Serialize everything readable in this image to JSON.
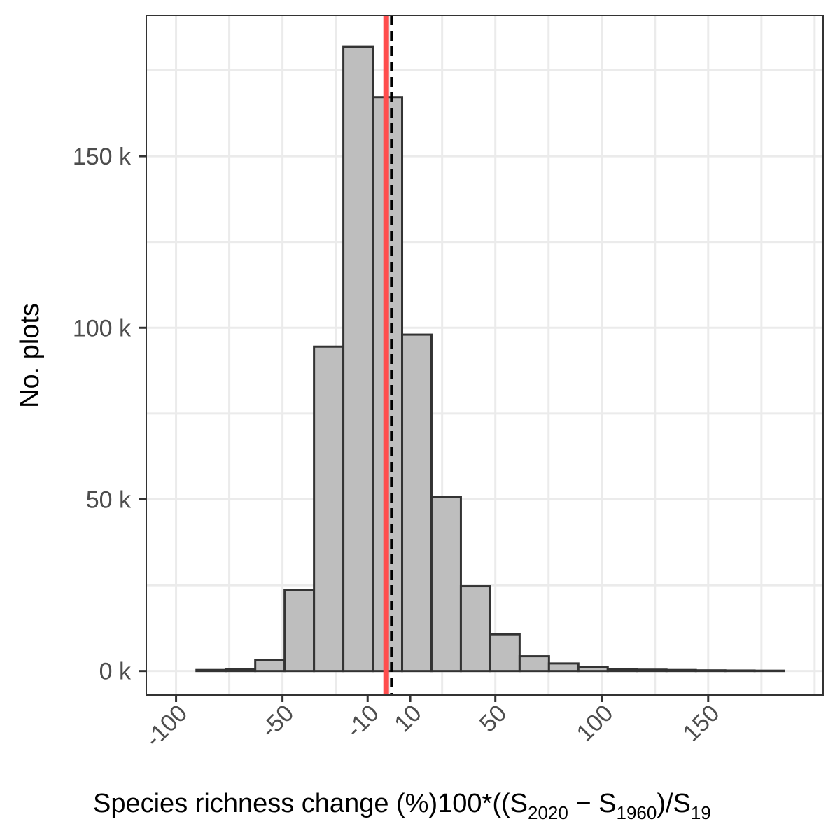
{
  "chart_data": {
    "type": "bar",
    "xlabel": {
      "prefix": "Species richness change (%)100*((S",
      "sub1": "2020",
      "mid": " − S",
      "sub2": "1960",
      "suffix": ")/S",
      "sub3": "19"
    },
    "ylabel": "No. plots",
    "xlim": [
      -114,
      204
    ],
    "ylim": [
      -7,
      191
    ],
    "x_ticks": [
      {
        "value": -100,
        "label": "-100"
      },
      {
        "value": -50,
        "label": "-50"
      },
      {
        "value": -10,
        "label": "-10"
      },
      {
        "value": 10,
        "label": "10"
      },
      {
        "value": 50,
        "label": "50"
      },
      {
        "value": 100,
        "label": "100"
      },
      {
        "value": 150,
        "label": "150"
      }
    ],
    "y_ticks": [
      {
        "value": 0,
        "label": "0 k"
      },
      {
        "value": 50,
        "label": "50 k"
      },
      {
        "value": 100,
        "label": "100 k"
      },
      {
        "value": 150,
        "label": "150 k"
      }
    ],
    "x_gridlines": [
      -100,
      -75,
      -50,
      -25,
      0,
      25,
      50,
      75,
      100,
      125,
      150,
      175,
      200
    ],
    "y_gridlines": [
      0,
      25,
      50,
      75,
      100,
      125,
      150,
      175
    ],
    "bin_width": 13.8,
    "bins": [
      {
        "x0": -90.4,
        "count": 0.3
      },
      {
        "x0": -76.6,
        "count": 0.5
      },
      {
        "x0": -62.8,
        "count": 3.2
      },
      {
        "x0": -49.0,
        "count": 23.5
      },
      {
        "x0": -35.2,
        "count": 94.5
      },
      {
        "x0": -21.4,
        "count": 181.8
      },
      {
        "x0": -7.6,
        "count": 167.2
      },
      {
        "x0": 6.2,
        "count": 98.0
      },
      {
        "x0": 20.0,
        "count": 50.8
      },
      {
        "x0": 33.8,
        "count": 24.7
      },
      {
        "x0": 47.6,
        "count": 10.7
      },
      {
        "x0": 61.4,
        "count": 4.3
      },
      {
        "x0": 75.2,
        "count": 2.2
      },
      {
        "x0": 89.0,
        "count": 1.1
      },
      {
        "x0": 102.8,
        "count": 0.6
      },
      {
        "x0": 116.6,
        "count": 0.4
      },
      {
        "x0": 130.4,
        "count": 0.3
      },
      {
        "x0": 144.2,
        "count": 0.2
      },
      {
        "x0": 158.0,
        "count": 0.15
      },
      {
        "x0": 171.8,
        "count": 0.1
      }
    ],
    "reference_lines": [
      {
        "value": -1.3,
        "color": "#ff4d4d",
        "style": "solid"
      },
      {
        "value": 1.2,
        "color": "#000000",
        "style": "dashed"
      }
    ]
  }
}
